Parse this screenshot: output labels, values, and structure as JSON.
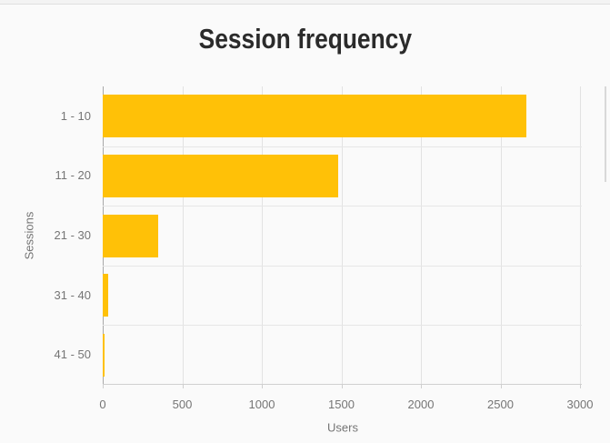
{
  "page": {
    "background": "#fafafa"
  },
  "chart_data": {
    "type": "bar",
    "orientation": "horizontal",
    "title": "Session frequency",
    "xlabel": "Users",
    "ylabel": "Sessions",
    "categories": [
      "1 - 10",
      "11 - 20",
      "21 - 30",
      "31 - 40",
      "41 - 50"
    ],
    "values": [
      2660,
      1480,
      350,
      36,
      9
    ],
    "xlim": [
      0,
      3000
    ],
    "xticks": [
      0,
      500,
      1000,
      1500,
      2000,
      2500,
      3000
    ],
    "xtick_labels": [
      "0",
      "500",
      "1000",
      "1500",
      "2000",
      "2500",
      "3000"
    ],
    "grid": "vertical-on-ticks-plus-row-separators",
    "legend": "none"
  },
  "colors": {
    "bar": "#ffc107",
    "title_text": "#2b2b2b",
    "axis_text": "#757575",
    "gridline": "#e2e2e2",
    "row_separator": "#e6e6e6",
    "axis_line": "#a8a8a8",
    "baseline": "#cfcfcf",
    "tick": "#cfcfcf",
    "top_strip": "#f3f3f3",
    "top_strip_border": "#e0e0e0",
    "scrollbar": "#d8d8d8"
  }
}
